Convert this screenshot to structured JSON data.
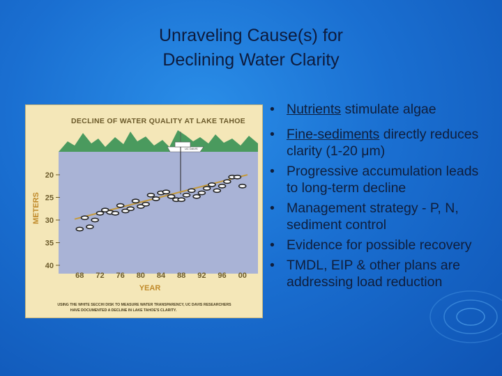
{
  "slide": {
    "title_line1": "Unraveling Cause(s) for",
    "title_line2": "Declining Water Clarity"
  },
  "figure": {
    "heading": "DECLINE OF WATER QUALITY AT LAKE TAHOE",
    "ylabel": "METERS",
    "xlabel": "YEAR",
    "boat_label": "UC DAVIS",
    "caption_line1": "USING THE WHITE SECCHI DISK TO MEASURE WATER TRANSPARENCY, UC DAVIS RESEARCHERS",
    "caption_line2": "HAVE DOCUMENTED A DECLINE IN LAKE TAHOE'S CLARITY.",
    "colors": {
      "mountains": "#4a9a5e",
      "water": "#a9b3d6",
      "points": "#222222",
      "trend": "#c59a3c",
      "sky": "#f4e7b8"
    }
  },
  "chart_data": {
    "type": "scatter",
    "title": "DECLINE OF WATER QUALITY AT LAKE TAHOE",
    "xlabel": "YEAR",
    "ylabel": "METERS",
    "x_tick_labels": [
      "68",
      "72",
      "76",
      "80",
      "84",
      "88",
      "92",
      "96",
      "00"
    ],
    "y_tick_labels": [
      "20",
      "25",
      "30",
      "35",
      "40"
    ],
    "xlim": [
      1967,
      2001
    ],
    "ylim": [
      40,
      20
    ],
    "y_inverted": true,
    "grid": false,
    "points": [
      {
        "x": 1968,
        "y": 32.0
      },
      {
        "x": 1969,
        "y": 29.5
      },
      {
        "x": 1970,
        "y": 31.5
      },
      {
        "x": 1971,
        "y": 30.0
      },
      {
        "x": 1972,
        "y": 28.5
      },
      {
        "x": 1973,
        "y": 27.8
      },
      {
        "x": 1974,
        "y": 28.3
      },
      {
        "x": 1975,
        "y": 28.5
      },
      {
        "x": 1976,
        "y": 26.8
      },
      {
        "x": 1977,
        "y": 28.0
      },
      {
        "x": 1978,
        "y": 27.5
      },
      {
        "x": 1979,
        "y": 25.8
      },
      {
        "x": 1980,
        "y": 27.0
      },
      {
        "x": 1981,
        "y": 26.5
      },
      {
        "x": 1982,
        "y": 24.5
      },
      {
        "x": 1983,
        "y": 25.3
      },
      {
        "x": 1984,
        "y": 24.0
      },
      {
        "x": 1985,
        "y": 23.8
      },
      {
        "x": 1986,
        "y": 24.8
      },
      {
        "x": 1987,
        "y": 25.5
      },
      {
        "x": 1988,
        "y": 25.5
      },
      {
        "x": 1989,
        "y": 24.5
      },
      {
        "x": 1990,
        "y": 23.5
      },
      {
        "x": 1991,
        "y": 24.8
      },
      {
        "x": 1992,
        "y": 24.0
      },
      {
        "x": 1993,
        "y": 23.0
      },
      {
        "x": 1994,
        "y": 22.2
      },
      {
        "x": 1995,
        "y": 23.5
      },
      {
        "x": 1996,
        "y": 22.5
      },
      {
        "x": 1997,
        "y": 21.5
      },
      {
        "x": 1998,
        "y": 20.5
      },
      {
        "x": 1999,
        "y": 20.5
      },
      {
        "x": 2000,
        "y": 22.5
      }
    ],
    "trend": [
      {
        "x": 1967,
        "y": 29.8
      },
      {
        "x": 2001,
        "y": 20.0
      }
    ]
  },
  "bullets": [
    {
      "underlined": "Nutrients",
      "rest": " stimulate algae"
    },
    {
      "underlined": "Fine-sediments",
      "rest": " directly reduces clarity (1-20 μm)"
    },
    {
      "underlined": "",
      "rest": "Progressive accumulation leads to long-term decline"
    },
    {
      "underlined": "",
      "rest": "Management strategy - P, N, sediment control"
    },
    {
      "underlined": "",
      "rest": "Evidence for possible recovery"
    },
    {
      "underlined": "",
      "rest": "TMDL, EIP & other plans are addressing load reduction"
    }
  ]
}
